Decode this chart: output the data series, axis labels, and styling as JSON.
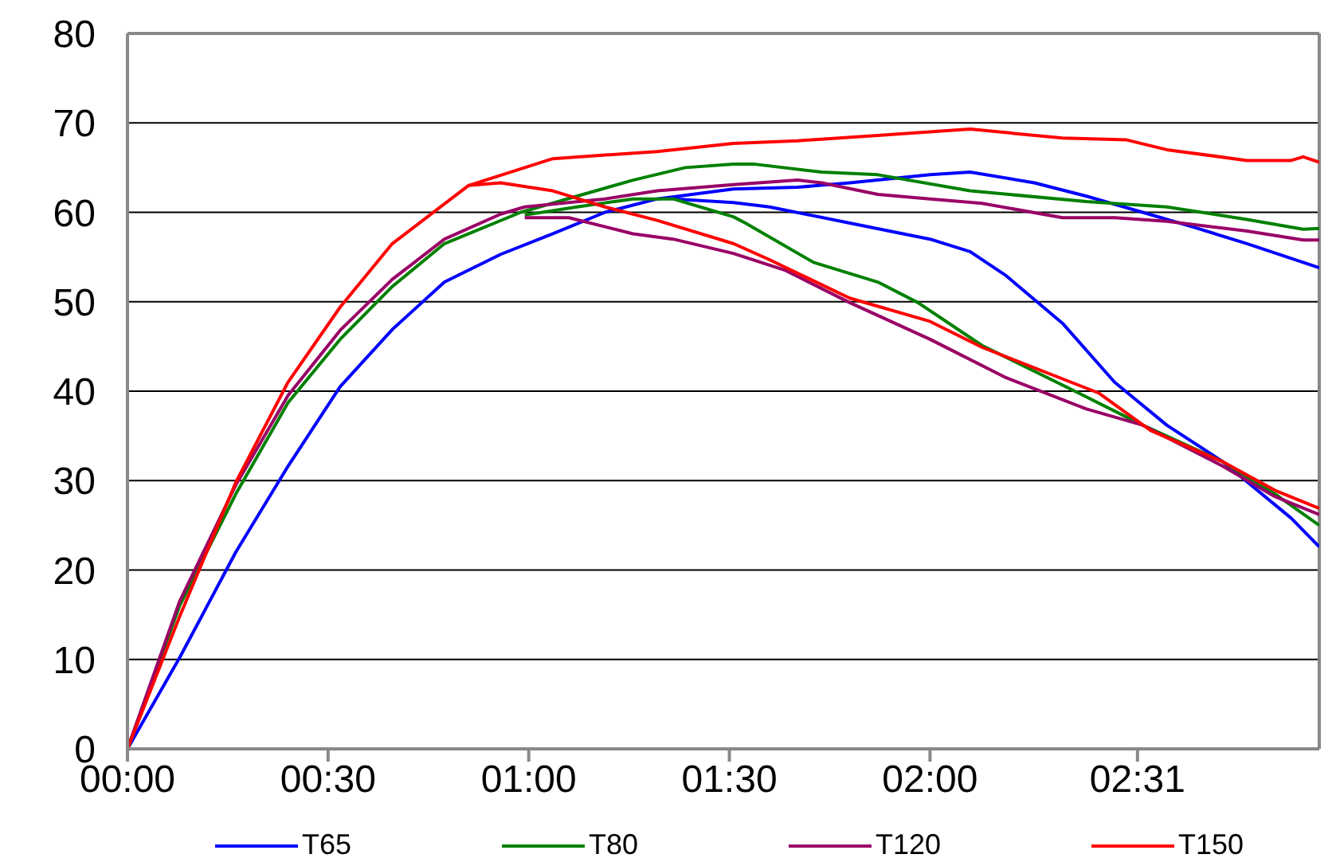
{
  "chart_data": {
    "type": "line",
    "xlim": [
      0,
      2.97
    ],
    "ylim": [
      0,
      80
    ],
    "yticks": [
      0,
      10,
      20,
      30,
      40,
      50,
      60,
      70,
      80
    ],
    "xticks": [
      {
        "value": 0,
        "label": "00:00"
      },
      {
        "value": 0.5,
        "label": "00:30"
      },
      {
        "value": 1,
        "label": "01:00"
      },
      {
        "value": 1.5,
        "label": "01:30"
      },
      {
        "value": 2,
        "label": "02:00"
      },
      {
        "value": 2.517,
        "label": "02:31"
      }
    ],
    "grid": "y",
    "legend": "bottom",
    "marker": "none",
    "line_style": "solid",
    "series": [
      {
        "name": "T65",
        "color": "#0000ff",
        "x": [
          0,
          0.13,
          0.27,
          0.4,
          0.53,
          0.66,
          0.79,
          0.93,
          1.06,
          1.19,
          1.32,
          1.51,
          1.67,
          1.8,
          2,
          2.1,
          2.26,
          2.39,
          2.53,
          2.66,
          2.79,
          2.93,
          2.97
        ],
        "values": [
          0,
          10.2,
          22,
          31.6,
          40.5,
          46.9,
          52.2,
          55.3,
          57.6,
          60,
          61.5,
          62.6,
          62.8,
          63.3,
          64.2,
          64.5,
          63.3,
          61.8,
          60,
          58.3,
          56.5,
          54.4,
          53.8
        ]
      },
      {
        "color": "#0000ff",
        "x": [
          1.36,
          1.51,
          1.6,
          1.8,
          2,
          2.1,
          2.19,
          2.33,
          2.46,
          2.59,
          2.73,
          2.9,
          2.97
        ],
        "values": [
          61.5,
          61.1,
          60.6,
          58.8,
          57,
          55.6,
          52.9,
          47.6,
          41,
          36.2,
          32.1,
          25.8,
          22.6
        ]
      },
      {
        "name": "T80",
        "color": "#008000",
        "x": [
          0,
          0.13,
          0.27,
          0.4,
          0.53,
          0.66,
          0.79,
          0.98,
          1.12,
          1.26,
          1.39,
          1.51,
          1.56,
          1.73,
          1.87,
          2.1,
          2.39,
          2.59,
          2.79,
          2.93,
          2.97
        ],
        "values": [
          0,
          16,
          28.5,
          38.7,
          45.8,
          51.7,
          56.5,
          60,
          61.8,
          63.6,
          65,
          65.4,
          65.4,
          64.5,
          64.2,
          62.4,
          61.2,
          60.6,
          59.2,
          58.1,
          58.2
        ]
      },
      {
        "color": "#008000",
        "x": [
          0.99,
          1.12,
          1.26,
          1.36,
          1.51,
          1.54,
          1.71,
          1.87,
          1.97,
          2.13,
          2.37,
          2.53,
          2.73,
          2.86,
          2.97
        ],
        "values": [
          59.7,
          60.6,
          61.5,
          61.5,
          59.5,
          58.8,
          54.4,
          52.2,
          49.9,
          45.1,
          39.8,
          36.2,
          32.1,
          28.5,
          25
        ]
      },
      {
        "name": "T120",
        "color": "#990066",
        "x": [
          0,
          0.13,
          0.27,
          0.4,
          0.53,
          0.66,
          0.79,
          0.93,
          0.99,
          1.19,
          1.32,
          1.51,
          1.67,
          1.73,
          1.87,
          2,
          2.13,
          2.33,
          2.46,
          2.59,
          2.79,
          2.93,
          2.97
        ],
        "values": [
          0,
          16.5,
          29.5,
          39.5,
          46.8,
          52.5,
          57,
          59.8,
          60.6,
          61.5,
          62.4,
          63.1,
          63.6,
          63.3,
          62,
          61.5,
          61,
          59.4,
          59.4,
          59,
          57.9,
          56.9,
          56.9
        ]
      },
      {
        "color": "#990066",
        "x": [
          0.99,
          1.1,
          1.26,
          1.36,
          1.51,
          1.64,
          1.8,
          2,
          2.19,
          2.39,
          2.53,
          2.73,
          2.86,
          2.97
        ],
        "values": [
          59.4,
          59.4,
          57.6,
          57,
          55.4,
          53.5,
          49.9,
          45.8,
          41.5,
          38,
          36.2,
          31.6,
          28.2,
          26.2
        ]
      },
      {
        "name": "T150",
        "color": "#ff0000",
        "x": [
          0,
          0.13,
          0.27,
          0.4,
          0.53,
          0.66,
          0.85,
          1.06,
          1.32,
          1.51,
          1.67,
          1.87,
          2.1,
          2.33,
          2.49,
          2.59,
          2.79,
          2.9,
          2.93,
          2.97
        ],
        "values": [
          0,
          14.8,
          29.8,
          41,
          49.4,
          56.5,
          63,
          66,
          66.8,
          67.7,
          68,
          68.6,
          69.3,
          68.3,
          68.1,
          67,
          65.8,
          65.8,
          66.2,
          65.6
        ]
      },
      {
        "color": "#ff0000",
        "x": [
          0.85,
          0.93,
          1.06,
          1.19,
          1.32,
          1.51,
          1.6,
          1.8,
          2,
          2.13,
          2.42,
          2.55,
          2.73,
          2.86,
          2.97
        ],
        "values": [
          63,
          63.3,
          62.4,
          60.6,
          59.1,
          56.5,
          54.7,
          50.4,
          47.8,
          44.9,
          39.8,
          35.6,
          32.1,
          28.9,
          26.9
        ]
      }
    ]
  }
}
